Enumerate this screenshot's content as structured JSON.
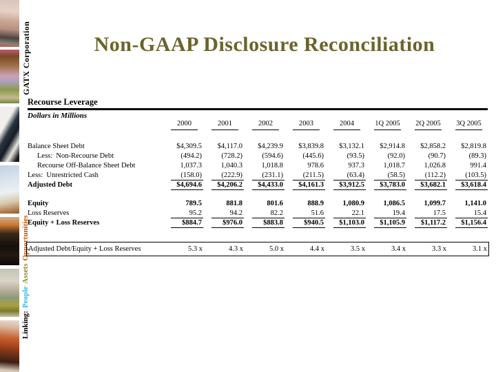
{
  "branding": {
    "vertical_top": "GATX Corporation",
    "linking": {
      "prefix": "Linking:",
      "word1": "People",
      "word2": "Assets",
      "word3": "Opportunities"
    },
    "colors": {
      "title_olive": "#6a642c",
      "people_blue": "#2fb5e8",
      "assets_olive": "#8f8a1f",
      "opportunities_orange": "#cc5500"
    }
  },
  "title": "Non-GAAP Disclosure Reconciliation",
  "section": {
    "heading": "Recourse Leverage",
    "subheading": "Dollars in Millions"
  },
  "table": {
    "columns": [
      "2000",
      "2001",
      "2002",
      "2003",
      "2004",
      "1Q 2005",
      "2Q 2005",
      "3Q 2005"
    ],
    "rows": [
      {
        "label": "Balance Sheet Debt",
        "indent": 0,
        "bold": false,
        "underline": false,
        "values": [
          "$4,309.5",
          "$4,117.0",
          "$4,239.9",
          "$3,839.8",
          "$3,132.1",
          "$2,914.8",
          "$2,858.2",
          "$2,819.8"
        ]
      },
      {
        "label": "Less:  Non-Recourse Debt",
        "indent": 1,
        "bold": false,
        "underline": false,
        "values": [
          "(494.2)",
          "(728.2)",
          "(594.6)",
          "(445.6)",
          "(93.5)",
          "(92.0)",
          "(90.7)",
          "(89.3)"
        ]
      },
      {
        "label": "Recourse Off-Balance Sheet Debt",
        "indent": 1,
        "bold": false,
        "underline": false,
        "values": [
          "1,037.3",
          "1,040.3",
          "1,018.8",
          "978.6",
          "937.3",
          "1,018.7",
          "1,026.8",
          "991.4"
        ]
      },
      {
        "label": "Less:  Unrestricted Cash",
        "indent": 0,
        "bold": false,
        "underline": true,
        "values": [
          "(158.0)",
          "(222.9)",
          "(231.1)",
          "(211.5)",
          "(63.4)",
          "(58.5)",
          "(112.2)",
          "(103.5)"
        ]
      },
      {
        "label": "Adjusted Debt",
        "indent": 0,
        "bold": true,
        "underline": true,
        "values": [
          "$4,694.6",
          "$4,206.2",
          "$4,433.0",
          "$4,161.3",
          "$3,912.5",
          "$3,783.0",
          "$3,682.1",
          "$3,618.4"
        ]
      },
      {
        "spacer": true
      },
      {
        "label": "Equity",
        "indent": 0,
        "bold": true,
        "underline": false,
        "values": [
          "789.5",
          "881.8",
          "801.6",
          "888.9",
          "1,080.9",
          "1,086.5",
          "1,099.7",
          "1,141.0"
        ]
      },
      {
        "label": "Loss Reserves",
        "indent": 0,
        "bold": false,
        "underline": true,
        "values": [
          "95.2",
          "94.2",
          "82.2",
          "51.6",
          "22.1",
          "19.4",
          "17.5",
          "15.4"
        ]
      },
      {
        "label": "Equity + Loss Reserves",
        "indent": 0,
        "bold": true,
        "underline": true,
        "values": [
          "$884.7",
          "$976.0",
          "$883.8",
          "$940.5",
          "$1,103.0",
          "$1,105.9",
          "$1,117.2",
          "$1,156.4"
        ]
      }
    ],
    "ratio_row": {
      "label": "Adjusted Debt/Equity + Loss Reserves",
      "values": [
        "5.3 x",
        "4.3 x",
        "5.0 x",
        "4.4 x",
        "3.5 x",
        "3.4 x",
        "3.3 x",
        "3.1 x"
      ]
    }
  }
}
